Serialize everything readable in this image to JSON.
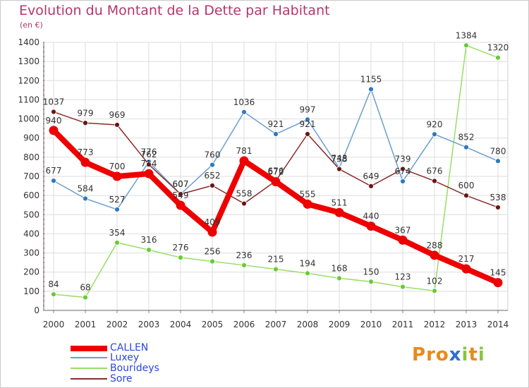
{
  "header": {
    "title": "Evolution du Montant de la Dette par Habitant",
    "unit": "(en €)"
  },
  "logo": {
    "text": "Proxiti",
    "letters": [
      "P",
      "r",
      "o",
      "x",
      "i",
      "t",
      "i"
    ],
    "colors": [
      "#e88a1a",
      "#e88a1a",
      "#e88a1a",
      "#2f6fd0",
      "#8bc53f",
      "#e88a1a",
      "#8bc53f"
    ]
  },
  "chart_data": {
    "type": "line",
    "title": "Evolution du Montant de la Dette par Habitant",
    "ylabel": "(en €)",
    "xlabel": "",
    "ylim": [
      0,
      1400
    ],
    "yticks": [
      0,
      100,
      200,
      300,
      400,
      500,
      600,
      700,
      800,
      900,
      1000,
      1100,
      1200,
      1300,
      1400
    ],
    "grid": true,
    "legend_position": "bottom-left",
    "categories": [
      "2000",
      "2001",
      "2002",
      "2003",
      "2004",
      "2005",
      "2006",
      "2007",
      "2008",
      "2009",
      "2010",
      "2011",
      "2012",
      "2013",
      "2014"
    ],
    "series": [
      {
        "name": "CALLEN",
        "color": "#ee0000",
        "values": [
          940,
          773,
          700,
          714,
          549,
          409,
          781,
          672,
          555,
          511,
          440,
          367,
          288,
          217,
          145
        ]
      },
      {
        "name": "Luxey",
        "color": "#6a9ed0",
        "values": [
          677,
          584,
          527,
          776,
          607,
          760,
          1036,
          921,
          997,
          743,
          1155,
          674,
          920,
          852,
          780
        ]
      },
      {
        "name": "Bourideys",
        "color": "#99dd66",
        "values": [
          84,
          68,
          354,
          316,
          276,
          256,
          236,
          215,
          194,
          168,
          150,
          123,
          102,
          1384,
          1320
        ]
      },
      {
        "name": "Sore",
        "color": "#8b2a2a",
        "values": [
          1037,
          979,
          969,
          762,
          607,
          652,
          558,
          676,
          921,
          738,
          649,
          739,
          676,
          600,
          538
        ]
      }
    ]
  }
}
